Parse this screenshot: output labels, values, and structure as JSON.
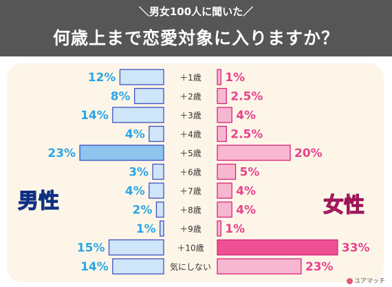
{
  "header": {
    "subtitle": "＼男女100人に聞いた／",
    "title": "何歳上まで恋愛対象に入りますか？"
  },
  "labels": {
    "male": "男性",
    "female": "女性"
  },
  "brand": "ユアマッチ",
  "colors": {
    "header_bg": "#565656",
    "panel_bg": "#fdf6e8",
    "male_bar": "#cfe5f8",
    "male_bar_highlight": "#8ec4ee",
    "male_stroke": "#3d4fc4",
    "male_text": "#2aa5e8",
    "female_bar": "#f8b7d0",
    "female_bar_highlight": "#ef4f93",
    "female_stroke": "#d6247a",
    "female_text": "#e8428d"
  },
  "chart_data": {
    "type": "bar",
    "orientation": "horizontal-butterfly",
    "categories": [
      "＋1歳",
      "＋2歳",
      "＋3歳",
      "＋4歳",
      "＋5歳",
      "＋6歳",
      "＋7歳",
      "＋8歳",
      "＋9歳",
      "＋10歳",
      "気にしない"
    ],
    "series": [
      {
        "name": "男性",
        "values": [
          12,
          8,
          14,
          4,
          23,
          3,
          4,
          2,
          1,
          15,
          14
        ],
        "labels": [
          "12%",
          "8%",
          "14%",
          "4%",
          "23%",
          "3%",
          "4%",
          "2%",
          "1%",
          "15%",
          "14%"
        ],
        "highlight_index": 4
      },
      {
        "name": "女性",
        "values": [
          1,
          2.5,
          4,
          2.5,
          20,
          5,
          4,
          4,
          1,
          33,
          23
        ],
        "labels": [
          "1%",
          "2.5%",
          "4%",
          "2.5%",
          "20%",
          "5%",
          "4%",
          "4%",
          "1%",
          "33%",
          "23%"
        ],
        "highlight_index": 9
      }
    ],
    "title": "何歳上まで恋愛対象に入りますか？",
    "xlim": [
      0,
      33
    ]
  }
}
